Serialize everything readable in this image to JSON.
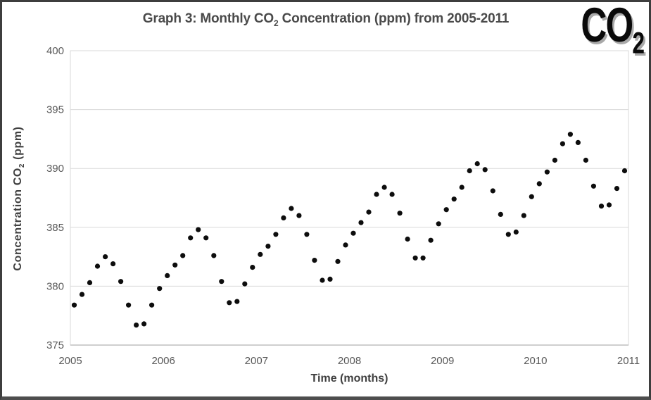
{
  "window": {
    "logo_parts": [
      "CO",
      "2"
    ]
  },
  "chart_data": {
    "type": "scatter",
    "title_parts": [
      "Graph 3: Monthly CO",
      "2",
      " Concentration (ppm) from 2005-2011"
    ],
    "xlabel": "Time (months)",
    "ylabel_parts": [
      "Concentration CO",
      "2",
      " (ppm)"
    ],
    "x_tick_labels": [
      "2005",
      "2006",
      "2007",
      "2008",
      "2009",
      "2010",
      "2011"
    ],
    "y_ticks": [
      375,
      380,
      385,
      390,
      395,
      400
    ],
    "ylim": [
      375,
      400
    ],
    "xlim_years": [
      2005,
      2011
    ],
    "grid": "horizontal",
    "legend": "none",
    "marker": "circle",
    "marker_color": "#0d0d0d",
    "gridline_color": "#d9d9d9",
    "axis_line_color": "#bfbfbf",
    "x_range_label": "Jan 2005 - Dec 2010, one point per month",
    "years_order": [
      "2005",
      "2006",
      "2007",
      "2008",
      "2009",
      "2010"
    ],
    "series": [
      {
        "name": "Monthly CO2 concentration (ppm)",
        "values_by_year": {
          "2005": [
            378.4,
            379.3,
            380.3,
            381.7,
            382.5,
            381.9,
            380.4,
            378.4,
            376.7,
            376.8,
            378.4,
            379.8
          ],
          "2006": [
            380.9,
            381.8,
            382.6,
            384.1,
            384.8,
            384.1,
            382.6,
            380.4,
            378.6,
            378.7,
            380.2,
            381.6
          ],
          "2007": [
            382.7,
            383.4,
            384.4,
            385.8,
            386.6,
            386.0,
            384.4,
            382.2,
            380.5,
            380.6,
            382.1,
            383.5
          ],
          "2008": [
            384.5,
            385.4,
            386.3,
            387.8,
            388.4,
            387.8,
            386.2,
            384.0,
            382.4,
            382.4,
            383.9,
            385.3
          ],
          "2009": [
            386.5,
            387.4,
            388.4,
            389.8,
            390.4,
            389.9,
            388.1,
            386.1,
            384.4,
            384.6,
            386.0,
            387.6
          ],
          "2010": [
            388.7,
            389.7,
            390.7,
            392.1,
            392.9,
            392.2,
            390.7,
            388.5,
            386.8,
            386.9,
            388.3,
            389.8
          ]
        }
      }
    ]
  }
}
